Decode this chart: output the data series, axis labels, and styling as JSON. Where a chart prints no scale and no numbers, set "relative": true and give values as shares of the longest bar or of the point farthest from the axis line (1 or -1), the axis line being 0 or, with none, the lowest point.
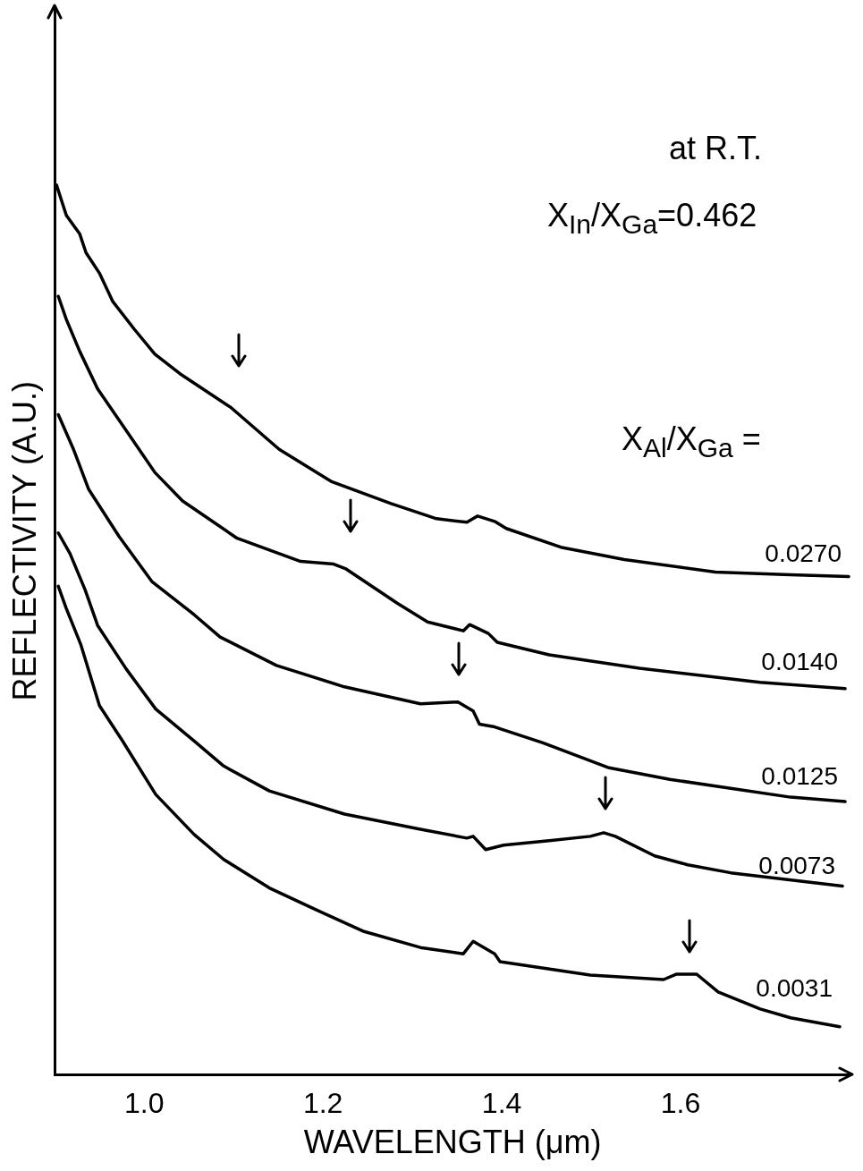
{
  "chart_data": {
    "type": "line",
    "relative": true,
    "xlabel": "WAVELENGTH (μm)",
    "ylabel": "REFLECTIVITY (A.U.)",
    "xlim": [
      0.9,
      1.79
    ],
    "xticks": [
      {
        "value": 1,
        "label": "1.0"
      },
      1.2,
      1.4,
      1.6
    ],
    "grid": false,
    "legend": false,
    "marker": "none",
    "line_style": "solid",
    "annotations": [
      "at R.T.",
      "X$_{In}$/X$_{Ga}$=0.462",
      "X$_{Al}$/X$_{Ga}$ ="
    ],
    "series": [
      {
        "name": "0.0270",
        "color": "#000000",
        "x": [
          0.902,
          0.913,
          0.928,
          0.935,
          0.95,
          0.965,
          0.989,
          1.012,
          1.04,
          1.097,
          1.151,
          1.209,
          1.276,
          1.327,
          1.361,
          1.373,
          1.392,
          1.405,
          1.466,
          1.537,
          1.639,
          1.723,
          1.788
        ],
        "values": [
          1,
          0.966,
          0.945,
          0.924,
          0.901,
          0.869,
          0.838,
          0.81,
          0.788,
          0.75,
          0.703,
          0.667,
          0.642,
          0.625,
          0.621,
          0.628,
          0.622,
          0.614,
          0.593,
          0.579,
          0.565,
          0.562,
          0.56
        ]
      },
      {
        "name": "0.0140",
        "color": "#000000",
        "x": [
          0.904,
          0.913,
          0.928,
          0.948,
          0.976,
          1.012,
          1.043,
          1.104,
          1.175,
          1.212,
          1.225,
          1.283,
          1.317,
          1.357,
          1.364,
          1.385,
          1.395,
          1.453,
          1.554,
          1.689,
          1.784
        ],
        "values": [
          0.875,
          0.849,
          0.813,
          0.771,
          0.73,
          0.677,
          0.645,
          0.603,
          0.577,
          0.574,
          0.569,
          0.53,
          0.509,
          0.499,
          0.506,
          0.496,
          0.486,
          0.472,
          0.457,
          0.441,
          0.434
        ]
      },
      {
        "name": "0.0125",
        "color": "#000000",
        "x": [
          0.904,
          0.921,
          0.938,
          0.972,
          1.009,
          1.056,
          1.085,
          1.148,
          1.224,
          1.309,
          1.351,
          1.368,
          1.375,
          1.392,
          1.446,
          1.52,
          1.588,
          1.723,
          1.784
        ],
        "values": [
          0.742,
          0.703,
          0.658,
          0.605,
          0.554,
          0.517,
          0.492,
          0.46,
          0.436,
          0.417,
          0.419,
          0.409,
          0.394,
          0.391,
          0.373,
          0.345,
          0.332,
          0.312,
          0.307
        ]
      },
      {
        "name": "0.0073",
        "color": "#000000",
        "x": [
          0.904,
          0.917,
          0.934,
          0.948,
          0.98,
          1.013,
          1.056,
          1.089,
          1.14,
          1.224,
          1.309,
          1.361,
          1.368,
          1.382,
          1.402,
          1.453,
          1.499,
          1.514,
          1.527,
          1.571,
          1.608,
          1.656,
          1.781
        ],
        "values": [
          0.609,
          0.586,
          0.545,
          0.505,
          0.456,
          0.411,
          0.375,
          0.347,
          0.319,
          0.293,
          0.276,
          0.266,
          0.268,
          0.253,
          0.258,
          0.263,
          0.268,
          0.272,
          0.268,
          0.246,
          0.236,
          0.227,
          0.212
        ]
      },
      {
        "name": "0.0031",
        "color": "#000000",
        "x": [
          0.904,
          0.913,
          0.929,
          0.95,
          0.976,
          1.013,
          1.056,
          1.089,
          1.14,
          1.191,
          1.246,
          1.309,
          1.357,
          1.368,
          1.392,
          1.398,
          1.499,
          1.581,
          1.595,
          1.618,
          1.642,
          1.689,
          1.723,
          1.778
        ],
        "values": [
          0.549,
          0.524,
          0.484,
          0.415,
          0.375,
          0.315,
          0.27,
          0.242,
          0.21,
          0.186,
          0.161,
          0.143,
          0.136,
          0.15,
          0.136,
          0.127,
          0.112,
          0.107,
          0.113,
          0.113,
          0.093,
          0.074,
          0.064,
          0.054
        ]
      }
    ]
  }
}
